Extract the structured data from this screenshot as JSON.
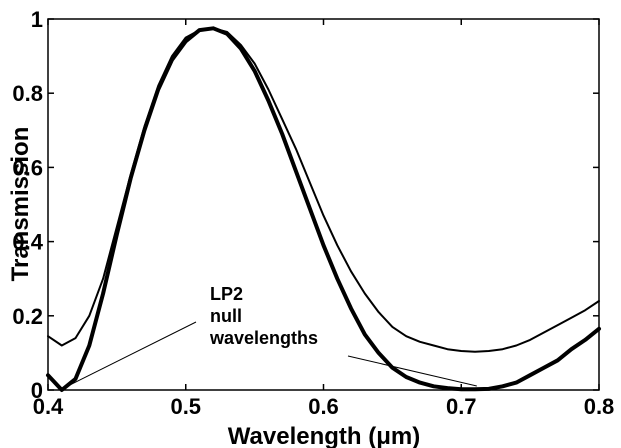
{
  "chart_data": {
    "type": "line",
    "xlabel": "Wavelength (μm)",
    "ylabel": "Transmission",
    "xlim": [
      0.4,
      0.8
    ],
    "ylim": [
      0,
      1
    ],
    "x_ticks": [
      "0.4",
      "0.5",
      "0.6",
      "0.7",
      "0.8"
    ],
    "y_ticks": [
      "0",
      "0.2",
      "0.4",
      "0.6",
      "0.8",
      "1"
    ],
    "grid": false,
    "legend": "none",
    "series": [
      {
        "style": "thick",
        "x": [
          0.4,
          0.41,
          0.42,
          0.43,
          0.44,
          0.45,
          0.46,
          0.47,
          0.48,
          0.49,
          0.5,
          0.51,
          0.52,
          0.53,
          0.54,
          0.55,
          0.56,
          0.57,
          0.58,
          0.59,
          0.6,
          0.61,
          0.62,
          0.63,
          0.64,
          0.65,
          0.66,
          0.67,
          0.68,
          0.69,
          0.7,
          0.71,
          0.72,
          0.73,
          0.74,
          0.75,
          0.76,
          0.77,
          0.78,
          0.79,
          0.8
        ],
        "y": [
          0.04,
          0.0,
          0.03,
          0.12,
          0.26,
          0.42,
          0.57,
          0.7,
          0.81,
          0.89,
          0.94,
          0.97,
          0.975,
          0.96,
          0.92,
          0.86,
          0.78,
          0.69,
          0.59,
          0.49,
          0.39,
          0.3,
          0.22,
          0.15,
          0.1,
          0.06,
          0.035,
          0.02,
          0.01,
          0.005,
          0.002,
          0.002,
          0.003,
          0.01,
          0.02,
          0.04,
          0.06,
          0.08,
          0.11,
          0.135,
          0.165
        ]
      },
      {
        "style": "thin",
        "x": [
          0.4,
          0.41,
          0.42,
          0.43,
          0.44,
          0.45,
          0.46,
          0.47,
          0.48,
          0.49,
          0.5,
          0.51,
          0.52,
          0.53,
          0.54,
          0.55,
          0.56,
          0.57,
          0.58,
          0.59,
          0.6,
          0.61,
          0.62,
          0.63,
          0.64,
          0.65,
          0.66,
          0.67,
          0.68,
          0.69,
          0.7,
          0.71,
          0.72,
          0.73,
          0.74,
          0.75,
          0.76,
          0.77,
          0.78,
          0.79,
          0.8
        ],
        "y": [
          0.145,
          0.12,
          0.14,
          0.2,
          0.3,
          0.44,
          0.58,
          0.71,
          0.82,
          0.9,
          0.95,
          0.97,
          0.975,
          0.965,
          0.93,
          0.88,
          0.81,
          0.73,
          0.65,
          0.56,
          0.47,
          0.39,
          0.32,
          0.26,
          0.21,
          0.17,
          0.145,
          0.13,
          0.12,
          0.11,
          0.105,
          0.103,
          0.105,
          0.11,
          0.12,
          0.135,
          0.155,
          0.175,
          0.195,
          0.215,
          0.24
        ]
      }
    ],
    "annotation": {
      "lines": [
        "LP2",
        "null",
        "wavelengths"
      ],
      "arrow_targets": [
        {
          "x": 0.41,
          "y": 0.0
        },
        {
          "x": 0.72,
          "y": 0.0
        }
      ]
    }
  }
}
